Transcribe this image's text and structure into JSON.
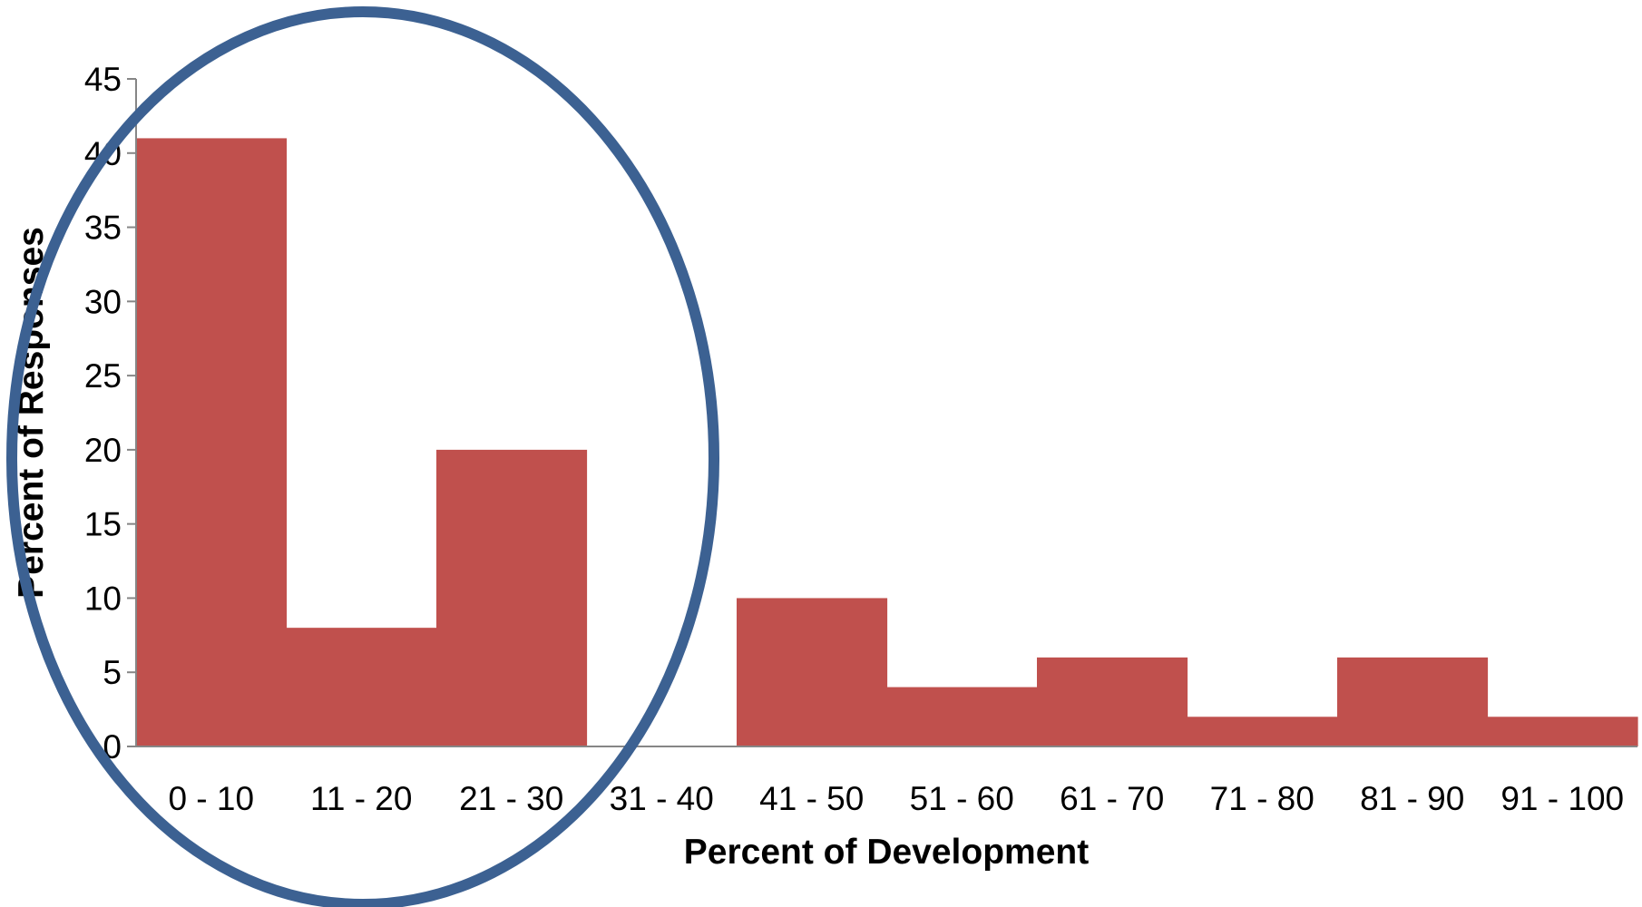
{
  "chart_data": {
    "type": "bar",
    "title": "",
    "xlabel": "Percent of Development",
    "ylabel": "Percent of Responses",
    "categories": [
      "0 - 10",
      "11 - 20",
      "21 - 30",
      "31 - 40",
      "41 - 50",
      "51 - 60",
      "61 - 70",
      "71 - 80",
      "81 - 90",
      "91 - 100"
    ],
    "values": [
      41,
      8,
      20,
      0,
      10,
      4,
      6,
      2,
      6,
      2
    ],
    "ylim": [
      0,
      45
    ],
    "yticks": [
      0,
      5,
      10,
      15,
      20,
      25,
      30,
      35,
      40,
      45
    ],
    "grid": false,
    "legend": "none",
    "bar_color": "#c0504d",
    "annotation": {
      "shape": "ellipse",
      "color": "#3c6192",
      "covers_categories": [
        "0 - 10",
        "11 - 20",
        "21 - 30"
      ]
    }
  }
}
